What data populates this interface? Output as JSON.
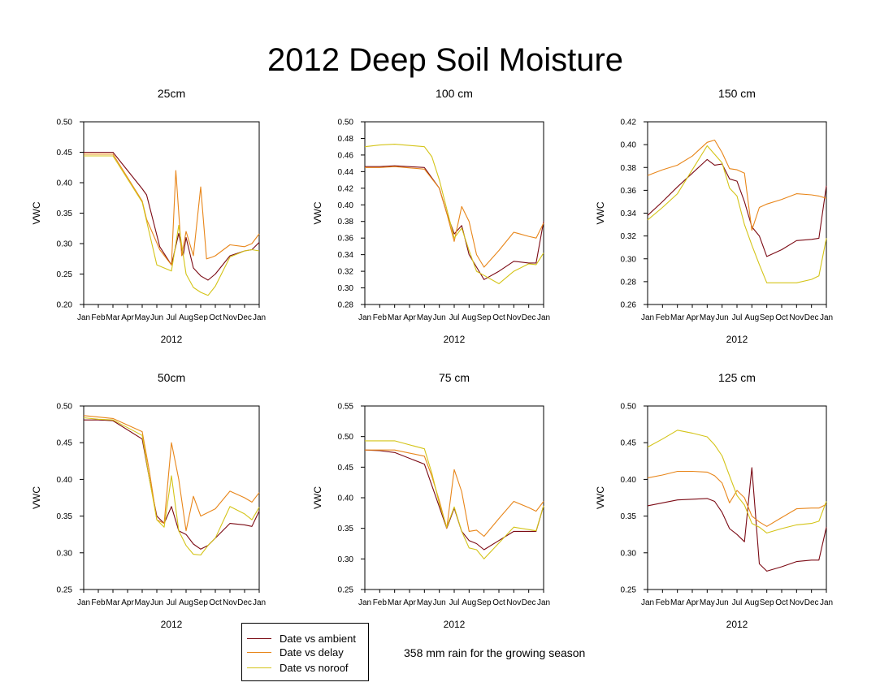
{
  "title": "2012 Deep Soil Moisture",
  "colors": {
    "ambient": "#7b0a14",
    "delay": "#e8861a",
    "noroof": "#d4c418"
  },
  "legend": {
    "items": [
      {
        "label": "Date vs ambient",
        "color": "#7b0a14"
      },
      {
        "label": "Date vs delay",
        "color": "#e8861a"
      },
      {
        "label": "Date vs noroof",
        "color": "#d4c418"
      }
    ]
  },
  "note": "358 mm rain for the growing season",
  "chart_data": [
    {
      "type": "line",
      "title": "25cm",
      "xlabel": "2012",
      "ylabel": "VWC",
      "ylim": [
        0.2,
        0.5
      ],
      "yticks": [
        "0.20",
        "0.25",
        "0.30",
        "0.35",
        "0.40",
        "0.45",
        "0.50"
      ],
      "xticks": [
        "Jan",
        "Feb",
        "Mar",
        "Apr",
        "May",
        "Jun",
        "Jul",
        "Aug",
        "Sep",
        "Oct",
        "Nov",
        "Dec",
        "Jan"
      ],
      "series": [
        {
          "name": "ambient",
          "x": [
            0,
            1,
            2,
            4,
            4.3,
            5.2,
            6,
            6.5,
            6.8,
            7,
            7.5,
            8,
            8.5,
            9,
            10,
            11,
            11.5,
            12
          ],
          "y": [
            0.45,
            0.45,
            0.45,
            0.39,
            0.38,
            0.295,
            0.265,
            0.317,
            0.28,
            0.31,
            0.26,
            0.247,
            0.24,
            0.25,
            0.28,
            0.288,
            0.29,
            0.302
          ]
        },
        {
          "name": "delay",
          "x": [
            0,
            1,
            2,
            4,
            4.3,
            5.2,
            6,
            6.3,
            6.7,
            7,
            7.5,
            8,
            8.4,
            8.8,
            9,
            10,
            11,
            11.5,
            12
          ],
          "y": [
            0.447,
            0.447,
            0.447,
            0.37,
            0.34,
            0.29,
            0.265,
            0.42,
            0.28,
            0.32,
            0.28,
            0.393,
            0.275,
            0.278,
            0.28,
            0.298,
            0.295,
            0.3,
            0.316
          ]
        },
        {
          "name": "noroof",
          "x": [
            0,
            1,
            2,
            4,
            5,
            6,
            6.5,
            7,
            7.5,
            8,
            8.5,
            9,
            10,
            11,
            11.5,
            12
          ],
          "y": [
            0.444,
            0.444,
            0.444,
            0.368,
            0.265,
            0.255,
            0.33,
            0.25,
            0.228,
            0.22,
            0.215,
            0.23,
            0.278,
            0.288,
            0.29,
            0.288
          ]
        }
      ]
    },
    {
      "type": "line",
      "title": "100 cm",
      "xlabel": "2012",
      "ylabel": "VWC",
      "ylim": [
        0.28,
        0.5
      ],
      "yticks": [
        "0.28",
        "0.30",
        "0.32",
        "0.34",
        "0.36",
        "0.38",
        "0.40",
        "0.42",
        "0.44",
        "0.46",
        "0.48",
        "0.50"
      ],
      "xticks": [
        "Jan",
        "Feb",
        "Mar",
        "Apr",
        "May",
        "Jun",
        "Jul",
        "Aug",
        "Sep",
        "Oct",
        "Nov",
        "Dec",
        "Jan"
      ],
      "series": [
        {
          "name": "ambient",
          "x": [
            0,
            1,
            2,
            4,
            5,
            5.5,
            6,
            6.5,
            7,
            7.5,
            8,
            9,
            10,
            11,
            11.5,
            12
          ],
          "y": [
            0.446,
            0.446,
            0.447,
            0.445,
            0.42,
            0.39,
            0.365,
            0.375,
            0.34,
            0.325,
            0.31,
            0.32,
            0.332,
            0.33,
            0.33,
            0.38
          ]
        },
        {
          "name": "delay",
          "x": [
            0,
            1,
            2,
            4,
            5,
            5.5,
            6,
            6.5,
            7,
            7.5,
            8,
            9,
            10,
            11,
            11.5,
            12
          ],
          "y": [
            0.445,
            0.445,
            0.446,
            0.443,
            0.42,
            0.39,
            0.356,
            0.398,
            0.38,
            0.34,
            0.325,
            0.345,
            0.367,
            0.362,
            0.36,
            0.378
          ]
        },
        {
          "name": "noroof",
          "x": [
            0,
            1,
            2,
            4,
            4.5,
            5,
            5.5,
            6,
            6.5,
            7,
            7.5,
            8,
            9,
            10,
            11,
            11.5,
            12
          ],
          "y": [
            0.47,
            0.472,
            0.473,
            0.47,
            0.458,
            0.43,
            0.395,
            0.36,
            0.372,
            0.345,
            0.32,
            0.315,
            0.305,
            0.32,
            0.329,
            0.328,
            0.342
          ]
        }
      ]
    },
    {
      "type": "line",
      "title": "150 cm",
      "xlabel": "2012",
      "ylabel": "VWC",
      "ylim": [
        0.26,
        0.42
      ],
      "yticks": [
        "0.26",
        "0.28",
        "0.30",
        "0.32",
        "0.34",
        "0.36",
        "0.38",
        "0.40",
        "0.42"
      ],
      "xticks": [
        "Jan",
        "Feb",
        "Mar",
        "Apr",
        "May",
        "Jun",
        "Jul",
        "Aug",
        "Sep",
        "Oct",
        "Nov",
        "Dec",
        "Jan"
      ],
      "series": [
        {
          "name": "ambient",
          "x": [
            0,
            1,
            2,
            3,
            4,
            4.5,
            5,
            5.5,
            6,
            6.5,
            7,
            7.5,
            8,
            9,
            10,
            11,
            11.5,
            12
          ],
          "y": [
            0.338,
            0.35,
            0.363,
            0.375,
            0.387,
            0.382,
            0.383,
            0.37,
            0.368,
            0.35,
            0.328,
            0.32,
            0.302,
            0.308,
            0.316,
            0.317,
            0.318,
            0.364
          ]
        },
        {
          "name": "delay",
          "x": [
            0,
            1,
            2,
            3,
            4,
            4.5,
            5,
            5.5,
            6,
            6.5,
            7,
            7.5,
            8,
            9,
            10,
            11,
            11.5,
            12
          ],
          "y": [
            0.373,
            0.378,
            0.382,
            0.39,
            0.402,
            0.404,
            0.393,
            0.379,
            0.378,
            0.375,
            0.325,
            0.345,
            0.348,
            0.352,
            0.357,
            0.356,
            0.355,
            0.353
          ]
        },
        {
          "name": "noroof",
          "x": [
            0,
            1,
            2,
            3,
            4,
            5,
            5.5,
            6,
            6.5,
            7,
            7.5,
            8,
            9,
            10,
            11,
            11.5,
            12
          ],
          "y": [
            0.334,
            0.345,
            0.357,
            0.378,
            0.399,
            0.384,
            0.362,
            0.355,
            0.33,
            0.312,
            0.295,
            0.279,
            0.279,
            0.279,
            0.282,
            0.285,
            0.318
          ]
        }
      ]
    },
    {
      "type": "line",
      "title": "50cm",
      "xlabel": "2012",
      "ylabel": "VWC",
      "ylim": [
        0.25,
        0.5
      ],
      "yticks": [
        "0.25",
        "0.30",
        "0.35",
        "0.40",
        "0.45",
        "0.50"
      ],
      "xticks": [
        "Jan",
        "Feb",
        "Mar",
        "Apr",
        "May",
        "Jun",
        "Jul",
        "Aug",
        "Sep",
        "Oct",
        "Nov",
        "Dec",
        "Jan"
      ],
      "series": [
        {
          "name": "ambient",
          "x": [
            0,
            1,
            2,
            4,
            4.5,
            5,
            5.5,
            6,
            6.5,
            7,
            7.5,
            8,
            8.5,
            9,
            10,
            11,
            11.5,
            12
          ],
          "y": [
            0.481,
            0.481,
            0.48,
            0.455,
            0.4,
            0.35,
            0.34,
            0.363,
            0.33,
            0.325,
            0.312,
            0.305,
            0.31,
            0.32,
            0.34,
            0.338,
            0.336,
            0.357
          ]
        },
        {
          "name": "delay",
          "x": [
            0,
            1,
            2,
            4,
            4.5,
            5,
            5.5,
            6,
            6.5,
            7,
            7.5,
            8,
            8.5,
            9,
            10,
            11,
            11.5,
            12
          ],
          "y": [
            0.487,
            0.485,
            0.483,
            0.465,
            0.41,
            0.345,
            0.34,
            0.45,
            0.4,
            0.33,
            0.377,
            0.35,
            0.355,
            0.36,
            0.384,
            0.375,
            0.369,
            0.382
          ]
        },
        {
          "name": "noroof",
          "x": [
            0,
            1,
            2,
            4,
            4.5,
            5,
            5.5,
            6,
            6.5,
            7,
            7.5,
            8,
            8.5,
            9,
            10,
            11,
            11.5,
            12
          ],
          "y": [
            0.484,
            0.482,
            0.481,
            0.46,
            0.4,
            0.345,
            0.335,
            0.405,
            0.33,
            0.31,
            0.298,
            0.297,
            0.31,
            0.32,
            0.363,
            0.353,
            0.345,
            0.362
          ]
        }
      ]
    },
    {
      "type": "line",
      "title": "75 cm",
      "xlabel": "2012",
      "ylabel": "VWC",
      "ylim": [
        0.25,
        0.55
      ],
      "yticks": [
        "0.25",
        "0.30",
        "0.35",
        "0.40",
        "0.45",
        "0.50",
        "0.55"
      ],
      "xticks": [
        "Jan",
        "Feb",
        "Mar",
        "Apr",
        "May",
        "Jun",
        "Jul",
        "Aug",
        "Sep",
        "Oct",
        "Nov",
        "Dec",
        "Jan"
      ],
      "series": [
        {
          "name": "ambient",
          "x": [
            0,
            1,
            2,
            4,
            4.5,
            5,
            5.5,
            6,
            6.5,
            7,
            7.5,
            8,
            9,
            10,
            11,
            11.5,
            12
          ],
          "y": [
            0.478,
            0.477,
            0.474,
            0.455,
            0.42,
            0.385,
            0.35,
            0.383,
            0.345,
            0.33,
            0.325,
            0.315,
            0.33,
            0.345,
            0.345,
            0.345,
            0.387
          ]
        },
        {
          "name": "delay",
          "x": [
            0,
            1,
            2,
            4,
            4.5,
            5,
            5.5,
            6,
            6.5,
            7,
            7.5,
            8,
            9,
            10,
            11,
            11.5,
            12
          ],
          "y": [
            0.478,
            0.478,
            0.478,
            0.468,
            0.435,
            0.395,
            0.35,
            0.446,
            0.41,
            0.345,
            0.347,
            0.337,
            0.366,
            0.394,
            0.384,
            0.378,
            0.394
          ]
        },
        {
          "name": "noroof",
          "x": [
            0,
            1,
            2,
            4,
            4.5,
            5,
            5.5,
            6,
            6.5,
            7,
            7.5,
            8,
            9,
            10,
            11,
            11.5,
            12
          ],
          "y": [
            0.493,
            0.493,
            0.493,
            0.48,
            0.44,
            0.39,
            0.352,
            0.385,
            0.345,
            0.318,
            0.315,
            0.3,
            0.326,
            0.352,
            0.348,
            0.346,
            0.387
          ]
        }
      ]
    },
    {
      "type": "line",
      "title": "125 cm",
      "xlabel": "2012",
      "ylabel": "VWC",
      "ylim": [
        0.25,
        0.5
      ],
      "yticks": [
        "0.25",
        "0.30",
        "0.35",
        "0.40",
        "0.45",
        "0.50"
      ],
      "xticks": [
        "Jan",
        "Feb",
        "Mar",
        "Apr",
        "May",
        "Jun",
        "Jul",
        "Aug",
        "Sep",
        "Oct",
        "Nov",
        "Dec",
        "Jan"
      ],
      "series": [
        {
          "name": "ambient",
          "x": [
            0,
            1,
            2,
            3,
            4,
            4.5,
            5,
            5.5,
            6,
            6.5,
            7,
            7.5,
            8,
            9,
            10,
            11,
            11.5,
            12
          ],
          "y": [
            0.364,
            0.368,
            0.372,
            0.373,
            0.374,
            0.37,
            0.355,
            0.333,
            0.325,
            0.315,
            0.416,
            0.285,
            0.275,
            0.281,
            0.288,
            0.29,
            0.29,
            0.335
          ]
        },
        {
          "name": "delay",
          "x": [
            0,
            1,
            2,
            3,
            4,
            4.5,
            5,
            5.5,
            6,
            6.5,
            7,
            7.5,
            8,
            9,
            10,
            11,
            11.5,
            12
          ],
          "y": [
            0.402,
            0.406,
            0.411,
            0.411,
            0.41,
            0.405,
            0.395,
            0.368,
            0.385,
            0.375,
            0.35,
            0.342,
            0.336,
            0.348,
            0.36,
            0.361,
            0.361,
            0.366
          ]
        },
        {
          "name": "noroof",
          "x": [
            0,
            1,
            2,
            3,
            4,
            4.5,
            5,
            5.5,
            6,
            6.5,
            7,
            7.5,
            8,
            9,
            10,
            11,
            11.5,
            12
          ],
          "y": [
            0.444,
            0.455,
            0.467,
            0.463,
            0.458,
            0.447,
            0.432,
            0.405,
            0.378,
            0.365,
            0.34,
            0.335,
            0.327,
            0.333,
            0.338,
            0.34,
            0.343,
            0.37
          ]
        }
      ]
    }
  ]
}
